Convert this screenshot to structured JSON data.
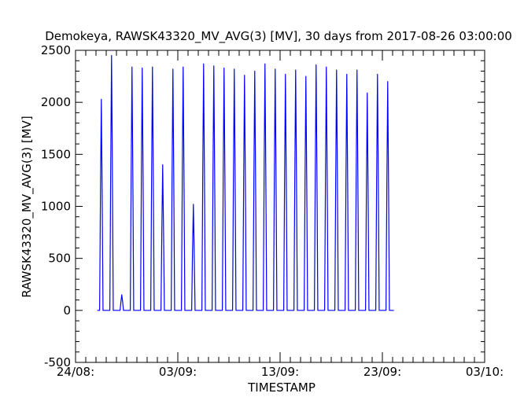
{
  "chart_data": {
    "type": "line",
    "title": "Demokeya, RAWSK43320_MV_AVG(3) [MV], 30 days from  2017-08-26 03:00:00",
    "xlabel": "TIMESTAMP",
    "ylabel": "RAWSK43320_MV_AVG(3)  [MV]",
    "x_tick_labels": [
      "24/08:",
      "03/09:",
      "13/09:",
      "23/09:",
      "03/10:"
    ],
    "y_tick_labels": [
      "-500",
      "0",
      "500",
      "1000",
      "1500",
      "2000",
      "2500"
    ],
    "xlim": [
      "2017-08-24",
      "2017-10-03"
    ],
    "ylim": [
      -500,
      2500
    ],
    "line_color": "#0000ff",
    "series": [
      {
        "daily_peaks": [
          {
            "date": "2017-08-26",
            "peak": 2030
          },
          {
            "date": "2017-08-27",
            "peak": 2450
          },
          {
            "date": "2017-08-28",
            "peak": 150
          },
          {
            "date": "2017-08-29",
            "peak": 2340
          },
          {
            "date": "2017-08-30",
            "peak": 2330
          },
          {
            "date": "2017-08-31",
            "peak": 2340
          },
          {
            "date": "2017-09-01",
            "peak": 1400
          },
          {
            "date": "2017-09-02",
            "peak": 2320
          },
          {
            "date": "2017-09-03",
            "peak": 2340
          },
          {
            "date": "2017-09-04",
            "peak": 1020
          },
          {
            "date": "2017-09-05",
            "peak": 2370
          },
          {
            "date": "2017-09-06",
            "peak": 2350
          },
          {
            "date": "2017-09-07",
            "peak": 2330
          },
          {
            "date": "2017-09-08",
            "peak": 2320
          },
          {
            "date": "2017-09-09",
            "peak": 2260
          },
          {
            "date": "2017-09-10",
            "peak": 2300
          },
          {
            "date": "2017-09-11",
            "peak": 2370
          },
          {
            "date": "2017-09-12",
            "peak": 2320
          },
          {
            "date": "2017-09-13",
            "peak": 2270
          },
          {
            "date": "2017-09-14",
            "peak": 2310
          },
          {
            "date": "2017-09-15",
            "peak": 2250
          },
          {
            "date": "2017-09-16",
            "peak": 2360
          },
          {
            "date": "2017-09-17",
            "peak": 2340
          },
          {
            "date": "2017-09-18",
            "peak": 2310
          },
          {
            "date": "2017-09-19",
            "peak": 2270
          },
          {
            "date": "2017-09-20",
            "peak": 2310
          },
          {
            "date": "2017-09-21",
            "peak": 2090
          },
          {
            "date": "2017-09-22",
            "peak": 2270
          },
          {
            "date": "2017-09-23",
            "peak": 2200
          }
        ],
        "end_date": "2017-09-24T03:00:00"
      }
    ],
    "grid": false,
    "legend": "none"
  }
}
